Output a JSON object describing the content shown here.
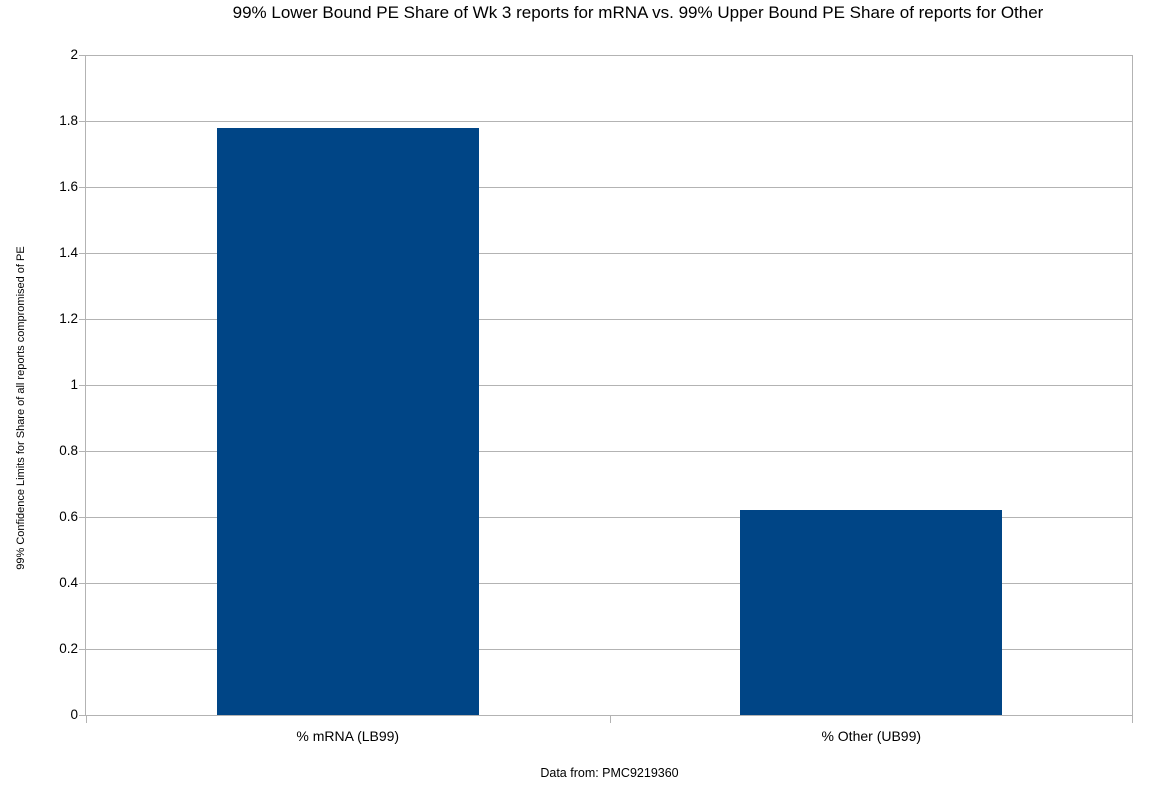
{
  "chart": {
    "title": "99% Lower Bound PE Share of Wk 3 reports for mRNA vs. 99% Upper Bound PE Share of reports for Other",
    "source_note": "Data from: PMC9219360"
  },
  "chart_data": {
    "type": "bar",
    "title": "99% Lower Bound PE Share of Wk 3 reports for mRNA vs. 99% Upper Bound PE Share of reports for Other",
    "categories": [
      "% mRNA (LB99)",
      "% Other (UB99)"
    ],
    "values": [
      1.78,
      0.62
    ],
    "xlabel": "",
    "ylabel": "99% Confidence Limits for Share of all reports compromised of PE",
    "ylim": [
      0,
      2
    ],
    "ytick_values": [
      0,
      0.2,
      0.4,
      0.6,
      0.8,
      1,
      1.2,
      1.4,
      1.6,
      1.8,
      2
    ],
    "ytick_labels": [
      "0",
      "0.2",
      "0.4",
      "0.6",
      "0.8",
      "1",
      "1.2",
      "1.4",
      "1.6",
      "1.8",
      "2"
    ],
    "grid": true,
    "legend": "none",
    "bar_width_fraction": 0.5,
    "bar_color": "#004586",
    "grid_color": "#b3b3b3",
    "axis_color": "#b3b3b3",
    "text_color": "#000000",
    "source_note": "Data from: PMC9219360"
  }
}
